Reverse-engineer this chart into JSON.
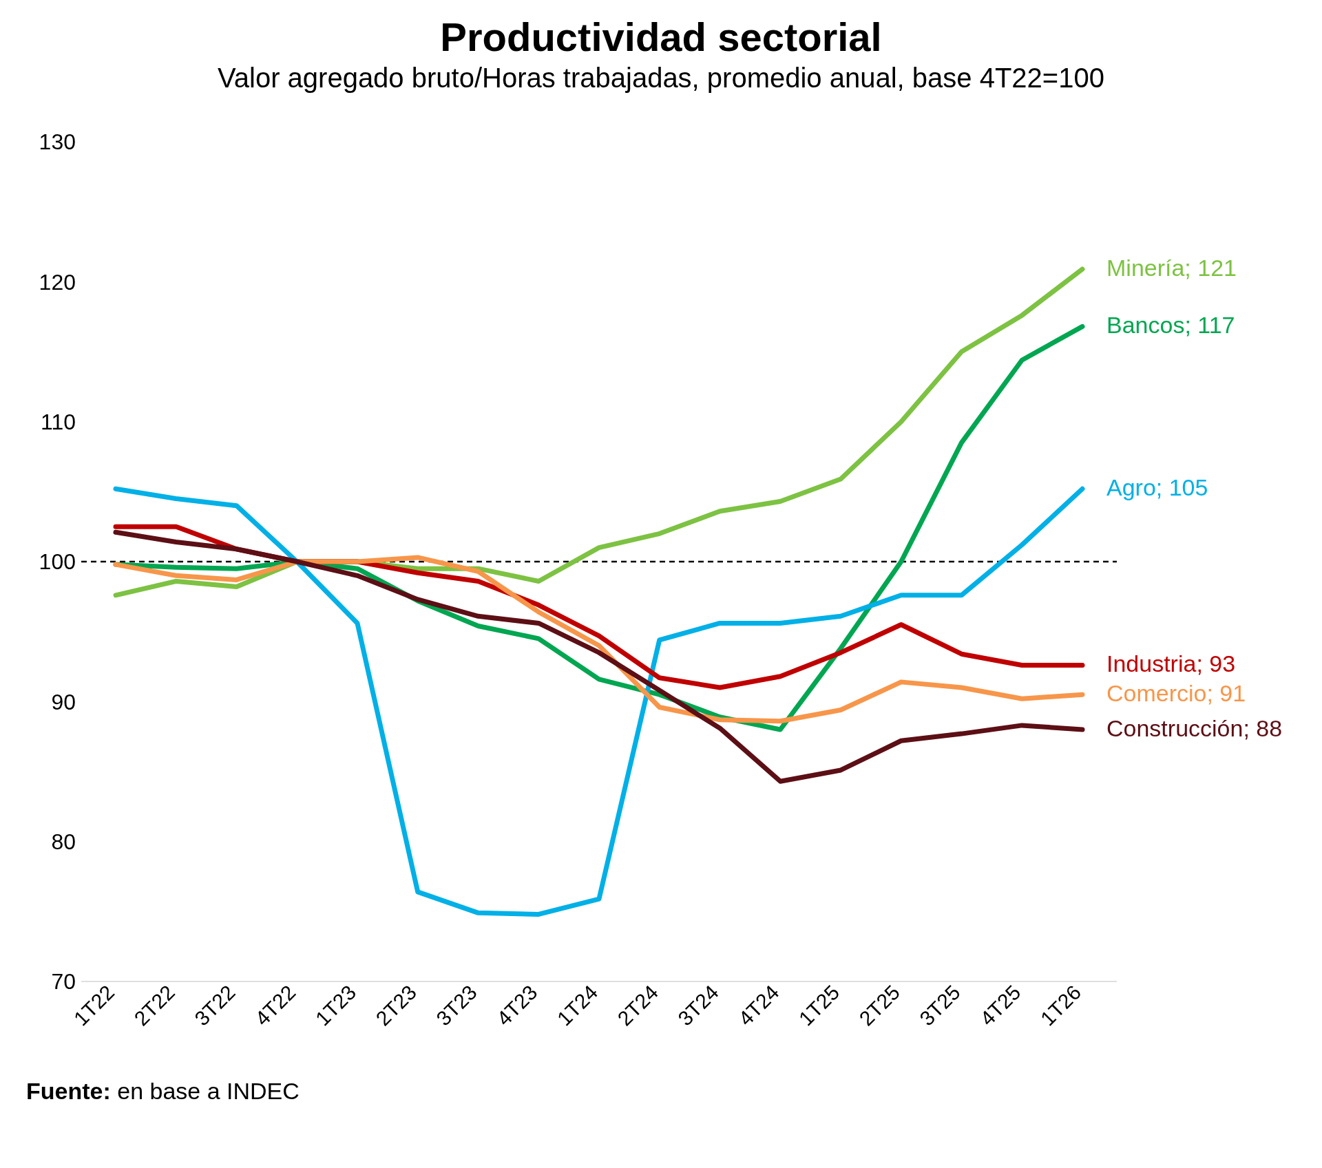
{
  "chart_data": {
    "type": "line",
    "title": "Productividad sectorial",
    "subtitle": "Valor agregado bruto/Horas trabajadas, promedio anual, base 4T22=100",
    "categories": [
      "1T22",
      "2T22",
      "3T22",
      "4T22",
      "1T23",
      "2T23",
      "3T23",
      "4T23",
      "1T24",
      "2T24",
      "3T24",
      "4T24",
      "1T25",
      "2T25",
      "3T25",
      "4T25",
      "1T26"
    ],
    "series": [
      {
        "name": "Minería; 121",
        "color": "#7dc242",
        "values": [
          97.6,
          98.6,
          98.2,
          100,
          100,
          99.5,
          99.5,
          98.6,
          101,
          102,
          103.6,
          104.3,
          105.9,
          110,
          115,
          117.6,
          120.9
        ]
      },
      {
        "name": "Bancos; 117",
        "color": "#00a651",
        "values": [
          99.8,
          99.6,
          99.5,
          100,
          99.5,
          97.2,
          95.4,
          94.5,
          91.6,
          90.5,
          88.9,
          88,
          93.8,
          100,
          108.5,
          114.4,
          116.8
        ]
      },
      {
        "name": "Agro; 105",
        "color": "#00b0e6",
        "values": [
          105.2,
          104.5,
          104,
          100,
          95.6,
          76.4,
          74.9,
          74.8,
          75.9,
          94.4,
          95.6,
          95.6,
          96.1,
          97.6,
          97.6,
          101.2,
          105.2
        ]
      },
      {
        "name": "Industria; 93",
        "color": "#c00000",
        "values": [
          102.5,
          102.5,
          100.9,
          100,
          100,
          99.2,
          98.6,
          96.9,
          94.7,
          91.7,
          91,
          91.8,
          93.5,
          95.5,
          93.4,
          92.6,
          92.6
        ]
      },
      {
        "name": "Comercio; 91",
        "color": "#f7964a",
        "values": [
          99.8,
          99,
          98.7,
          100,
          100,
          100.3,
          99.3,
          96.4,
          94,
          89.6,
          88.7,
          88.6,
          89.4,
          91.4,
          91,
          90.2,
          90.5
        ]
      },
      {
        "name": "Construcción; 88",
        "color": "#5c0f15",
        "values": [
          102.1,
          101.4,
          100.9,
          100,
          99,
          97.3,
          96.1,
          95.6,
          93.5,
          90.8,
          88.1,
          84.3,
          85.1,
          87.2,
          87.7,
          88.3,
          88
        ]
      }
    ],
    "ylim": [
      70,
      130
    ],
    "yticks": [
      70,
      80,
      90,
      100,
      110,
      120,
      130
    ],
    "grid": false,
    "legend": false,
    "marker": "none",
    "line_style": "solid",
    "ref_lines": [
      {
        "axis": "y",
        "value": 100,
        "color": "#000000",
        "line_style": "dashed"
      }
    ],
    "annotations": [
      "Fuente: en base a INDEC"
    ]
  }
}
